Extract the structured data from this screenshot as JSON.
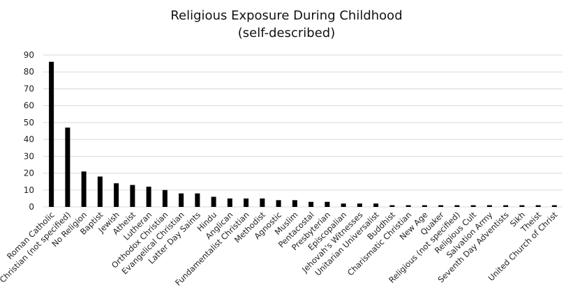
{
  "chart_data": {
    "type": "bar",
    "title": "Religious Exposure During Childhood",
    "subtitle": "(self-described)",
    "xlabel": "",
    "ylabel": "",
    "ylim": [
      0,
      90
    ],
    "yticks": [
      0,
      10,
      20,
      30,
      40,
      50,
      60,
      70,
      80,
      90
    ],
    "grid": true,
    "legend": "none",
    "bar_color": "#000000",
    "grid_color": "#d9d9d9",
    "categories": [
      "Roman Catholic",
      "Christian (not specified)",
      "No Religion",
      "Baptist",
      "Jewish",
      "Atheist",
      "Lutheran",
      "Orthodox Christian",
      "Evangelical Christian",
      "Latter Day Saints",
      "Hindu",
      "Anglican",
      "Fundamentalist Christian",
      "Methodist",
      "Agnostic",
      "Muslim",
      "Pentacostal",
      "Presbyterian",
      "Episcopalian",
      "Jehovah's Witnesses",
      "Unitarian Universalist",
      "Buddhist",
      "Charismatic Christian",
      "New Age",
      "Quaker",
      "Religious (not specified)",
      "Religious Cult",
      "Salvation Army",
      "Seventh Day Adventists",
      "Sikh",
      "Theist",
      "United Church of Christ"
    ],
    "values": [
      86,
      47,
      21,
      18,
      14,
      13,
      12,
      10,
      8,
      8,
      6,
      5,
      5,
      5,
      4,
      4,
      3,
      3,
      2,
      2,
      2,
      1,
      1,
      1,
      1,
      1,
      1,
      1,
      1,
      1,
      1,
      1
    ]
  }
}
